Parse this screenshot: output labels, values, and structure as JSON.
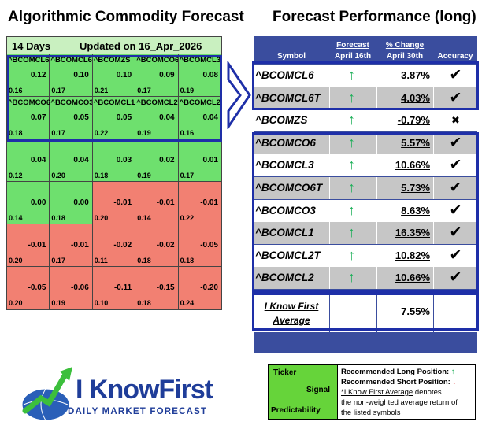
{
  "left_title": "Algorithmic Commodity Forecast",
  "right_title": "Forecast Performance (long)",
  "grid": {
    "days": "14 Days",
    "updated": "Updated on 16_Apr_2026",
    "cells": [
      {
        "symbol": "^BCOMCL6",
        "signal": "0.12",
        "predictability": "0.16",
        "type": "pos"
      },
      {
        "symbol": "^BCOMCL6T",
        "signal": "0.10",
        "predictability": "0.17",
        "type": "pos"
      },
      {
        "symbol": "^BCOMZS",
        "signal": "0.10",
        "predictability": "0.21",
        "type": "pos"
      },
      {
        "symbol": "^BCOMCO6",
        "signal": "0.09",
        "predictability": "0.17",
        "type": "pos"
      },
      {
        "symbol": "^BCOMCL3",
        "signal": "0.08",
        "predictability": "0.19",
        "type": "pos"
      },
      {
        "symbol": "^BCOMCO6T",
        "signal": "0.07",
        "predictability": "0.18",
        "type": "pos"
      },
      {
        "symbol": "^BCOMCO3",
        "signal": "0.05",
        "predictability": "0.17",
        "type": "pos"
      },
      {
        "symbol": "^BCOMCL1",
        "signal": "0.05",
        "predictability": "0.22",
        "type": "pos"
      },
      {
        "symbol": "^BCOMCL2T",
        "signal": "0.04",
        "predictability": "0.19",
        "type": "pos"
      },
      {
        "symbol": "^BCOMCL2",
        "signal": "0.04",
        "predictability": "0.16",
        "type": "pos"
      },
      {
        "symbol": "",
        "signal": "0.04",
        "predictability": "0.12",
        "type": "pos"
      },
      {
        "symbol": "",
        "signal": "0.04",
        "predictability": "0.20",
        "type": "pos"
      },
      {
        "symbol": "",
        "signal": "0.03",
        "predictability": "0.18",
        "type": "pos"
      },
      {
        "symbol": "",
        "signal": "0.02",
        "predictability": "0.19",
        "type": "pos"
      },
      {
        "symbol": "",
        "signal": "0.01",
        "predictability": "0.17",
        "type": "pos"
      },
      {
        "symbol": "",
        "signal": "0.00",
        "predictability": "0.14",
        "type": "pos"
      },
      {
        "symbol": "",
        "signal": "0.00",
        "predictability": "0.18",
        "type": "pos"
      },
      {
        "symbol": "",
        "signal": "-0.01",
        "predictability": "0.20",
        "type": "neg"
      },
      {
        "symbol": "",
        "signal": "-0.01",
        "predictability": "0.14",
        "type": "neg"
      },
      {
        "symbol": "",
        "signal": "-0.01",
        "predictability": "0.22",
        "type": "neg"
      },
      {
        "symbol": "",
        "signal": "-0.01",
        "predictability": "0.20",
        "type": "neg"
      },
      {
        "symbol": "",
        "signal": "-0.01",
        "predictability": "0.17",
        "type": "neg"
      },
      {
        "symbol": "",
        "signal": "-0.02",
        "predictability": "0.11",
        "type": "neg"
      },
      {
        "symbol": "",
        "signal": "-0.02",
        "predictability": "0.18",
        "type": "neg"
      },
      {
        "symbol": "",
        "signal": "-0.05",
        "predictability": "0.18",
        "type": "neg"
      },
      {
        "symbol": "",
        "signal": "-0.05",
        "predictability": "0.20",
        "type": "neg"
      },
      {
        "symbol": "",
        "signal": "-0.06",
        "predictability": "0.19",
        "type": "neg"
      },
      {
        "symbol": "",
        "signal": "-0.11",
        "predictability": "0.10",
        "type": "neg"
      },
      {
        "symbol": "",
        "signal": "-0.15",
        "predictability": "0.18",
        "type": "neg"
      },
      {
        "symbol": "",
        "signal": "-0.20",
        "predictability": "0.24",
        "type": "neg"
      }
    ]
  },
  "table": {
    "col_symbol": "Symbol",
    "col_forecast": "Forecast",
    "col_forecast_date": "April 16th",
    "col_change": "% Change",
    "col_change_date": "April 30th",
    "col_accuracy": "Accuracy",
    "rows": [
      {
        "symbol": "^BCOMCL6",
        "change": "3.87%",
        "accuracy": "✔",
        "shade": "white"
      },
      {
        "symbol": "^BCOMCL6T",
        "change": "4.03%",
        "accuracy": "✔",
        "shade": "grey"
      },
      {
        "symbol": "^BCOMZS",
        "change": "-0.79%",
        "accuracy": "✖",
        "shade": "white"
      },
      {
        "symbol": "^BCOMCO6",
        "change": "5.57%",
        "accuracy": "✔",
        "shade": "grey"
      },
      {
        "symbol": "^BCOMCL3",
        "change": "10.66%",
        "accuracy": "✔",
        "shade": "white"
      },
      {
        "symbol": "^BCOMCO6T",
        "change": "5.73%",
        "accuracy": "✔",
        "shade": "grey"
      },
      {
        "symbol": "^BCOMCO3",
        "change": "8.63%",
        "accuracy": "✔",
        "shade": "white"
      },
      {
        "symbol": "^BCOMCL1",
        "change": "16.35%",
        "accuracy": "✔",
        "shade": "grey"
      },
      {
        "symbol": "^BCOMCL2T",
        "change": "10.82%",
        "accuracy": "✔",
        "shade": "white"
      },
      {
        "symbol": "^BCOMCL2",
        "change": "10.66%",
        "accuracy": "✔",
        "shade": "grey"
      }
    ],
    "avg_label_1": "I Know First",
    "avg_label_2": "Average",
    "avg_value": "7.55%",
    "forecast_arrow": "↑"
  },
  "logo": {
    "brand": "I KnowFirst",
    "tagline": "DAILY MARKET FORECAST"
  },
  "legend": {
    "ticker": "Ticker",
    "signal": "Signal",
    "predictability": "Predictability",
    "long_label": "Recommended Long Position:",
    "long_arrow": "↑",
    "short_label": "Recommended Short Position:",
    "short_arrow": "↓",
    "avg_note_underlined": "*I Know First Average",
    "avg_note_rest": " denotes",
    "avg_note_line2": "the non-weighted average return of",
    "avg_note_line3": "the listed symbols"
  },
  "colors": {
    "positive_cell": "#6ee06e",
    "negative_cell": "#f28072",
    "table_bg": "#3a4d9e",
    "outline": "#1e2fa8",
    "up_arrow": "#1fb05a"
  }
}
